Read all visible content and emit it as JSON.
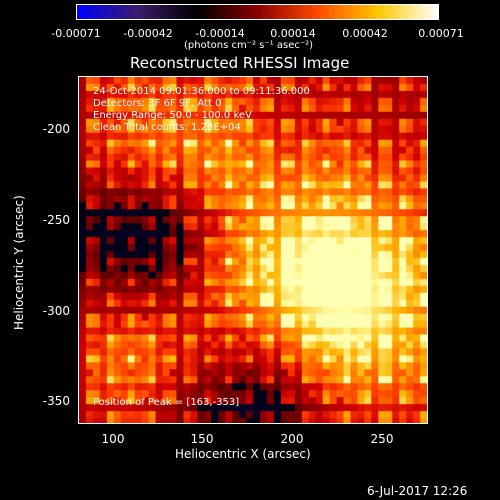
{
  "colorbar": {
    "tick_labels": [
      "-0.00071",
      "-0.00042",
      "-0.00014",
      "0.00014",
      "0.00042",
      "0.00071"
    ],
    "unit_label": "(photons cm⁻² s⁻¹ asec⁻²)",
    "stops": [
      "#0000ff",
      "#3a1c6a",
      "#000000",
      "#8a0000",
      "#ff4a00",
      "#ffc800",
      "#ffffff"
    ]
  },
  "title": "Reconstructed RHESSI Image",
  "annotations": {
    "line1": "24-Oct-2014 09:01:36.000 to 09:11:36.000",
    "line2": "Detectors: 3F 6F 9F, Att 0",
    "line3": "Energy Range: 50.0 - 100.0 keV",
    "line4": "Clean     Total counts: 1.28E+04",
    "peak": "Position of Peak = [163,-353]"
  },
  "axes": {
    "xlabel": "Heliocentric X (arcsec)",
    "ylabel": "Heliocentric Y (arcsec)",
    "x_ticks": [
      "100",
      "150",
      "200",
      "250"
    ],
    "y_ticks": [
      "-200",
      "-250",
      "-300",
      "-350"
    ]
  },
  "timestamp": "6-Jul-2017 12:26"
}
